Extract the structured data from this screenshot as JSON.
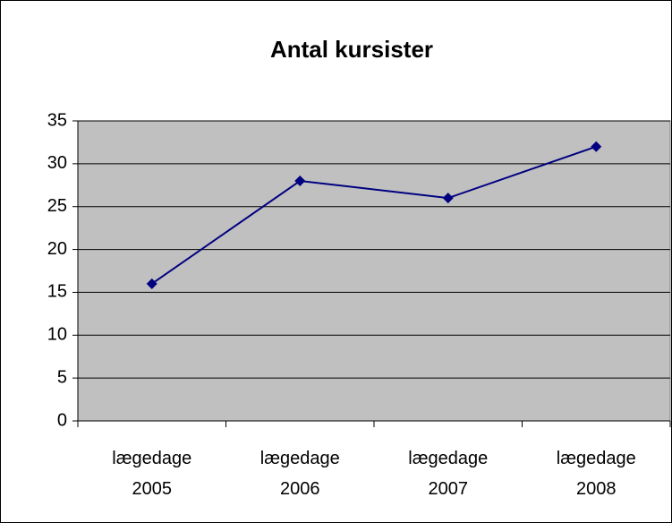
{
  "chart_data": {
    "type": "line",
    "title": "Antal kursister",
    "categories": [
      "lægedage 2005",
      "lægedage 2006",
      "lægedage 2007",
      "lægedage 2008"
    ],
    "series": [
      {
        "name": "Antal kursister",
        "color": "#000080",
        "values": [
          16,
          28,
          26,
          32
        ]
      }
    ],
    "ylim": [
      0,
      35
    ],
    "yticks": [
      0,
      5,
      10,
      15,
      20,
      25,
      30,
      35
    ],
    "grid": true,
    "plot_background": "#c0c0c0"
  }
}
